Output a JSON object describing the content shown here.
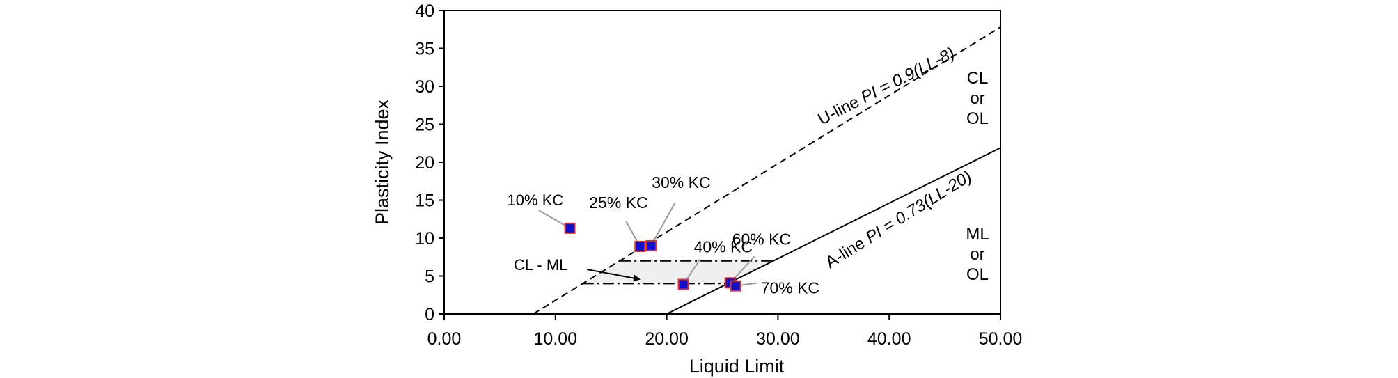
{
  "chart_data": {
    "type": "scatter",
    "xlabel": "Liquid Limit",
    "ylabel": "Plasticity Index",
    "xlim": [
      0,
      50
    ],
    "ylim": [
      0,
      40
    ],
    "x_ticks": [
      0,
      10,
      20,
      30,
      40,
      50
    ],
    "y_ticks": [
      0,
      5,
      10,
      15,
      20,
      25,
      30,
      35,
      40
    ],
    "x_tick_labels": [
      "0.00",
      "10.00",
      "20.00",
      "30.00",
      "40.00",
      "50.00"
    ],
    "y_tick_labels": [
      "0",
      "5",
      "10",
      "15",
      "20",
      "25",
      "30",
      "35",
      "40"
    ],
    "grid": false,
    "points": [
      {
        "label": "10% KC",
        "x": 11.3,
        "y": 11.3
      },
      {
        "label": "25% KC",
        "x": 17.6,
        "y": 8.9
      },
      {
        "label": "30% KC",
        "x": 18.6,
        "y": 9.0
      },
      {
        "label": "40% KC",
        "x": 21.5,
        "y": 3.9
      },
      {
        "label": "60% KC",
        "x": 25.7,
        "y": 4.1
      },
      {
        "label": "70% KC",
        "x": 26.2,
        "y": 3.7
      }
    ],
    "lines": {
      "u_line": {
        "label_prefix": "U-line ",
        "label_eq": "PI = 0.9(LL-8)",
        "slope": 0.9,
        "offset": 8
      },
      "a_line": {
        "label_prefix": "A-line ",
        "label_eq": "PI = 0.73(LL-20)",
        "slope": 0.73,
        "offset": 20
      }
    },
    "cl_ml_zone": {
      "label": "CL - ML",
      "pi_min": 4,
      "pi_max": 7
    },
    "zones": [
      {
        "lines": [
          "CL",
          "or",
          "OL"
        ]
      },
      {
        "lines": [
          "ML",
          "or",
          "OL"
        ]
      }
    ],
    "colors": {
      "marker_fill": "#1010c8",
      "marker_edge": "#e03030",
      "leader": "#9a9a9a",
      "zone_fill": "#efefef"
    }
  }
}
